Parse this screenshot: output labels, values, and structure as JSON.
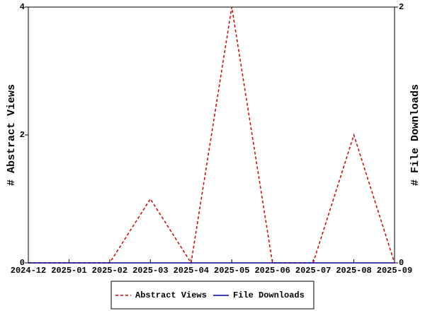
{
  "chart_data": {
    "type": "line",
    "categories": [
      "2024-12",
      "2025-01",
      "2025-02",
      "2025-03",
      "2025-04",
      "2025-05",
      "2025-06",
      "2025-07",
      "2025-08",
      "2025-09"
    ],
    "series": [
      {
        "name": "Abstract Views",
        "color": "#cc0000",
        "dashed": true,
        "values": [
          0,
          0,
          0,
          1,
          0,
          4,
          0,
          0,
          2,
          0
        ]
      },
      {
        "name": "File Downloads",
        "color": "#000099",
        "dashed": false,
        "axis": "y2",
        "values": [
          0,
          0,
          0,
          0,
          0,
          0,
          0,
          0,
          0,
          0
        ]
      }
    ],
    "y_label": "# Abstract Views",
    "y2_label": "# File Downloads",
    "ylim": [
      0,
      4
    ],
    "yticks": [
      0,
      2,
      4
    ],
    "y2lim": [
      0,
      2
    ],
    "y2ticks": [
      0,
      2
    ],
    "legend": "bottom"
  }
}
